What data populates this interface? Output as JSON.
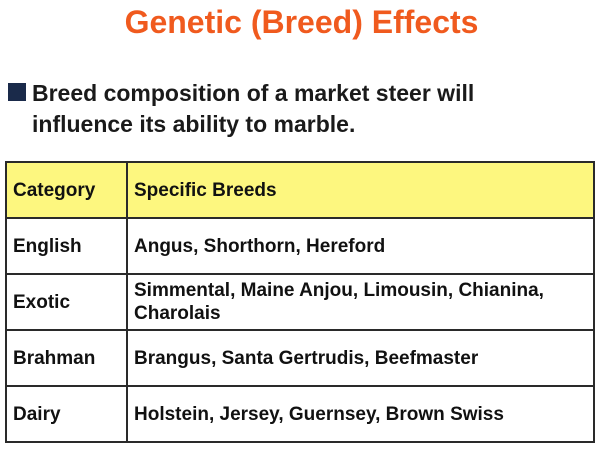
{
  "title": "Genetic (Breed) Effects",
  "bullet": {
    "text": "Breed composition of a market steer will influence its ability to marble."
  },
  "table": {
    "headers": [
      "Category",
      "Specific Breeds"
    ],
    "rows": [
      {
        "category": "English",
        "breeds": "Angus, Shorthorn, Hereford"
      },
      {
        "category": "Exotic",
        "breeds": "Simmental, Maine Anjou, Limousin, Chianina, Charolais"
      },
      {
        "category": "Brahman",
        "breeds": "Brangus, Santa Gertrudis, Beefmaster"
      },
      {
        "category": "Dairy",
        "breeds": "Holstein, Jersey, Guernsey, Brown Swiss"
      }
    ]
  },
  "colors": {
    "title": "#f05a1e",
    "header_fill": "#fdf77f",
    "bullet_marker": "#1a2a4a"
  }
}
